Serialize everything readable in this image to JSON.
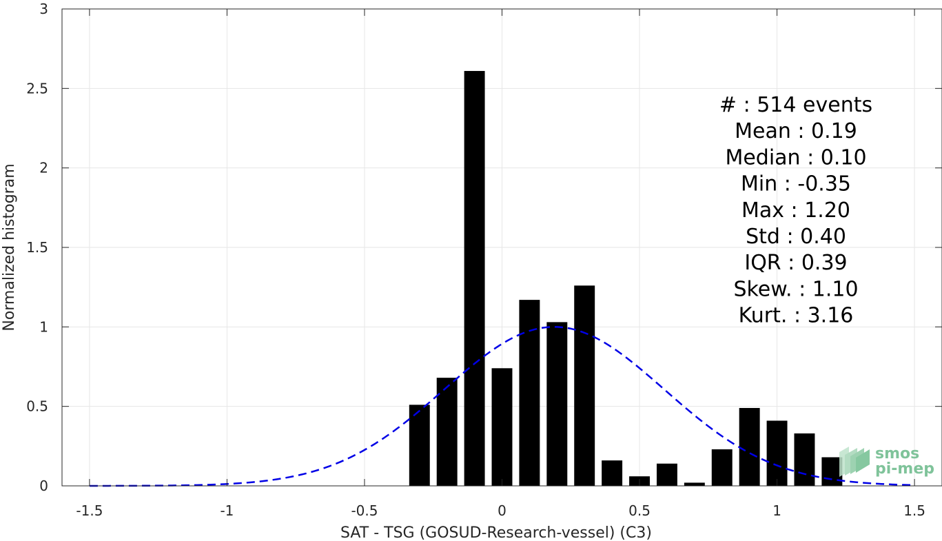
{
  "chart_data": {
    "type": "bar",
    "xlabel": "SAT - TSG (GOSUD-Research-vessel) (C3)",
    "ylabel": "Normalized histogram",
    "xlim": [
      -1.6,
      1.6
    ],
    "ylim": [
      0,
      3
    ],
    "x_ticks": [
      "-1.5",
      "-1",
      "-0.5",
      "0",
      "0.5",
      "1",
      "1.5"
    ],
    "x_tick_values": [
      -1.5,
      -1,
      -0.5,
      0,
      0.5,
      1,
      1.5
    ],
    "y_ticks": [
      "0",
      "0.5",
      "1",
      "1.5",
      "2",
      "2.5",
      "3"
    ],
    "y_tick_values": [
      0,
      0.5,
      1,
      1.5,
      2,
      2.5,
      3
    ],
    "grid": true,
    "bar_width": 0.075,
    "bar_color": "#000000",
    "bars": {
      "x": [
        -0.3,
        -0.2,
        -0.1,
        0.0,
        0.1,
        0.2,
        0.3,
        0.4,
        0.5,
        0.6,
        0.7,
        0.8,
        0.9,
        1.0,
        1.1,
        1.2
      ],
      "values": [
        0.51,
        0.68,
        2.61,
        0.74,
        1.17,
        1.03,
        1.26,
        0.16,
        0.06,
        0.14,
        0.02,
        0.23,
        0.49,
        0.41,
        0.33,
        0.18
      ]
    },
    "fit_curve": {
      "style": "dashed",
      "color": "#0000e6",
      "mean": 0.19,
      "std": 0.4,
      "peak": 1.0,
      "x_range": [
        -1.5,
        1.5
      ]
    },
    "stats": {
      "lines": [
        "#  : 514 events",
        "Mean : 0.19",
        "Median : 0.10",
        "Min : -0.35",
        "Max : 1.20",
        "Std : 0.40",
        "IQR : 0.39",
        "Skew. : 1.10",
        "Kurt. : 3.16"
      ]
    }
  },
  "logo": {
    "line1": "smos",
    "line2": "pi-mep",
    "color": "#7fc39a"
  }
}
